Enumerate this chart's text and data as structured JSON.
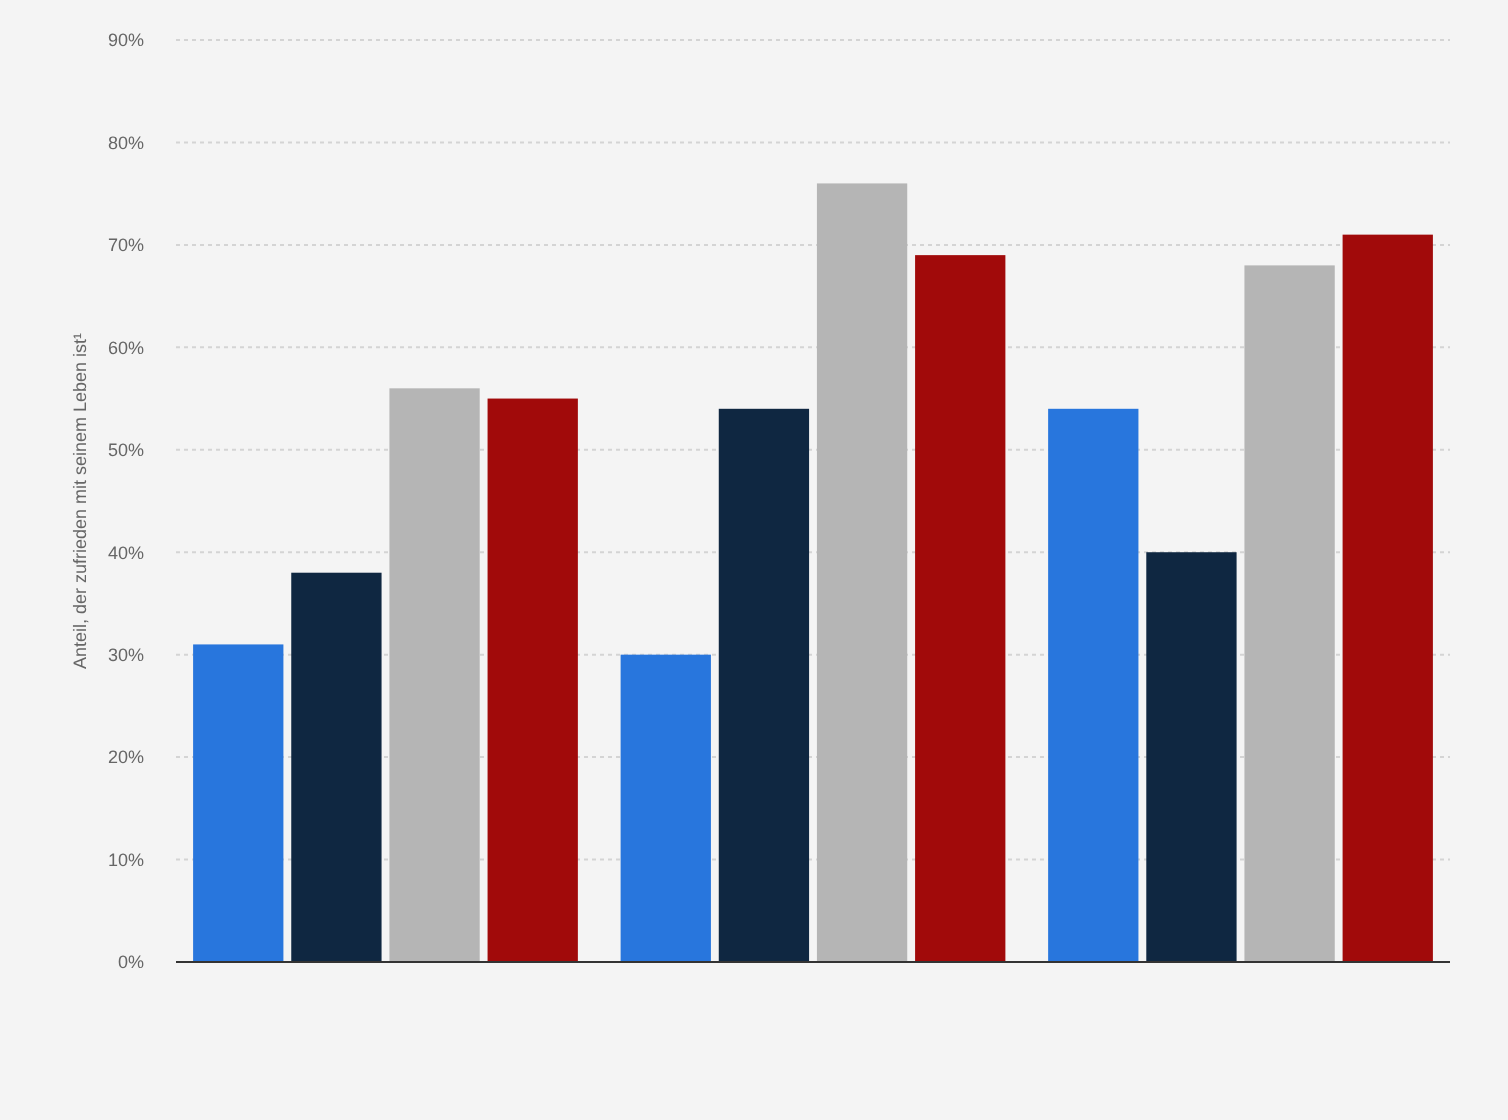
{
  "chart_data": {
    "type": "bar",
    "ylabel": "Anteil, der zufrieden mit seinem Leben ist¹",
    "categories": [
      null,
      null,
      null
    ],
    "series": [
      {
        "color": "#2876dd",
        "values": [
          31,
          30,
          54
        ]
      },
      {
        "color": "#0f2741",
        "values": [
          38,
          54,
          40
        ]
      },
      {
        "color": "#b5b5b5",
        "values": [
          56,
          76,
          68
        ]
      },
      {
        "color": "#a10a0a",
        "values": [
          55,
          69,
          71
        ]
      }
    ],
    "ylim": [
      0,
      90
    ],
    "yticks": [
      {
        "value": 0,
        "label": "0%"
      },
      {
        "value": 10,
        "label": "10%"
      },
      {
        "value": 20,
        "label": "20%"
      },
      {
        "value": 30,
        "label": "30%"
      },
      {
        "value": 40,
        "label": "40%"
      },
      {
        "value": 50,
        "label": "50%"
      },
      {
        "value": 60,
        "label": "60%"
      },
      {
        "value": 70,
        "label": "70%"
      },
      {
        "value": 80,
        "label": "80%"
      },
      {
        "value": 90,
        "label": "90%"
      }
    ],
    "grid": "y"
  }
}
